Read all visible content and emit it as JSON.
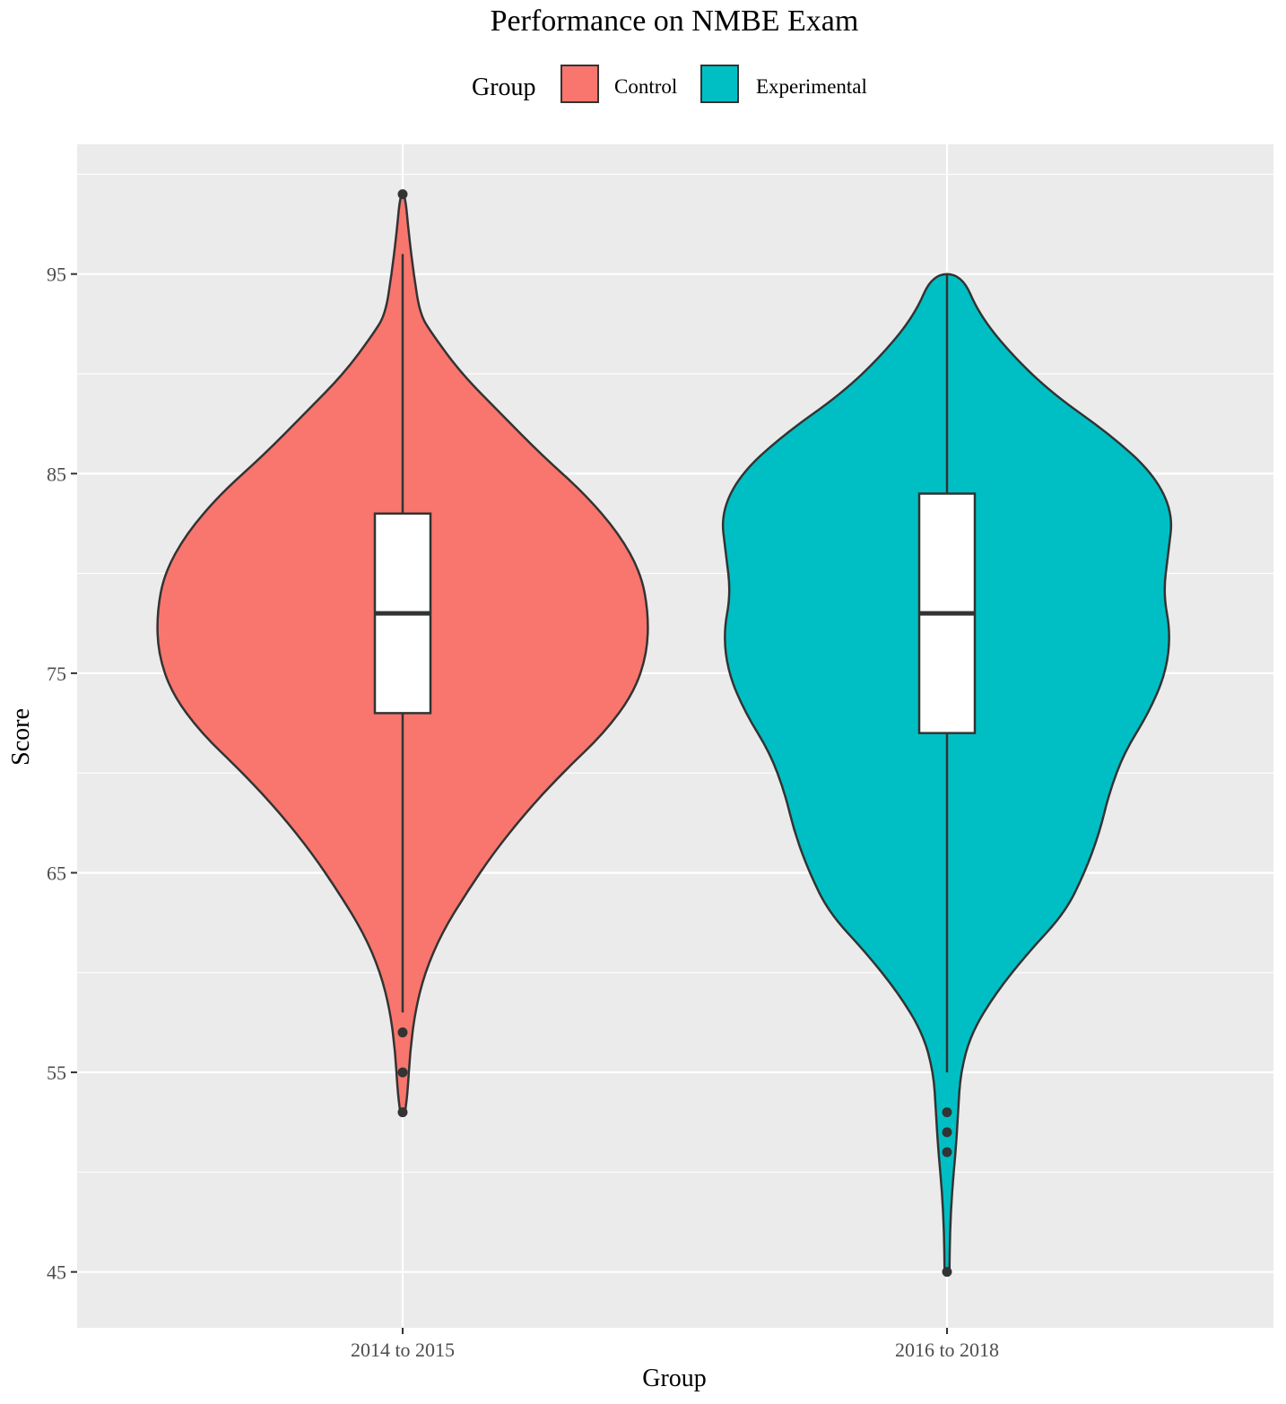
{
  "chart_data": {
    "type": "violin",
    "title": "Performance on NMBE Exam",
    "xlabel": "Group",
    "ylabel": "Score",
    "categories": [
      "2014 to 2015",
      "2016 to 2018"
    ],
    "ylim": [
      42.2,
      101.5
    ],
    "yticks": [
      45,
      55,
      65,
      75,
      85,
      95
    ],
    "grid": true,
    "legend": {
      "title": "Group",
      "position": "top",
      "entries": [
        {
          "label": "Control",
          "color": "#F8766D"
        },
        {
          "label": "Experimental",
          "color": "#00BFC4"
        }
      ]
    },
    "series": [
      {
        "name": "Control",
        "category": "2014 to 2015",
        "color": "#F8766D",
        "density": [
          [
            53,
            0.01
          ],
          [
            54,
            0.02
          ],
          [
            56,
            0.03
          ],
          [
            58,
            0.05
          ],
          [
            60,
            0.09
          ],
          [
            62,
            0.16
          ],
          [
            64,
            0.26
          ],
          [
            66,
            0.37
          ],
          [
            68,
            0.5
          ],
          [
            70,
            0.65
          ],
          [
            72,
            0.82
          ],
          [
            74,
            0.94
          ],
          [
            76,
            0.995
          ],
          [
            78,
            1.0
          ],
          [
            80,
            0.97
          ],
          [
            82,
            0.88
          ],
          [
            84,
            0.74
          ],
          [
            86,
            0.56
          ],
          [
            88,
            0.4
          ],
          [
            90,
            0.24
          ],
          [
            92,
            0.12
          ],
          [
            93,
            0.07
          ],
          [
            95,
            0.045
          ],
          [
            97,
            0.025
          ],
          [
            99,
            0.01
          ]
        ],
        "box": {
          "q1": 73,
          "median": 78,
          "q3": 83,
          "whisker_low": 58,
          "whisker_high": 96
        },
        "outliers": [
          99,
          57,
          55,
          53
        ]
      },
      {
        "name": "Experimental",
        "category": "2016 to 2018",
        "color": "#00BFC4",
        "density": [
          [
            45,
            0.01
          ],
          [
            47,
            0.012
          ],
          [
            49,
            0.02
          ],
          [
            51,
            0.035
          ],
          [
            53,
            0.045
          ],
          [
            55,
            0.055
          ],
          [
            57,
            0.1
          ],
          [
            59,
            0.2
          ],
          [
            61,
            0.33
          ],
          [
            63,
            0.48
          ],
          [
            65,
            0.56
          ],
          [
            67,
            0.62
          ],
          [
            69,
            0.66
          ],
          [
            71,
            0.72
          ],
          [
            73,
            0.82
          ],
          [
            75,
            0.89
          ],
          [
            77,
            0.91
          ],
          [
            79,
            0.88
          ],
          [
            81,
            0.9
          ],
          [
            83,
            0.92
          ],
          [
            85,
            0.84
          ],
          [
            87,
            0.66
          ],
          [
            89,
            0.43
          ],
          [
            91,
            0.26
          ],
          [
            93,
            0.13
          ],
          [
            95,
            0.06
          ]
        ],
        "box": {
          "q1": 72,
          "median": 78,
          "q3": 84,
          "whisker_low": 55,
          "whisker_high": 95
        },
        "outliers": [
          53,
          52,
          51,
          45
        ]
      }
    ]
  }
}
